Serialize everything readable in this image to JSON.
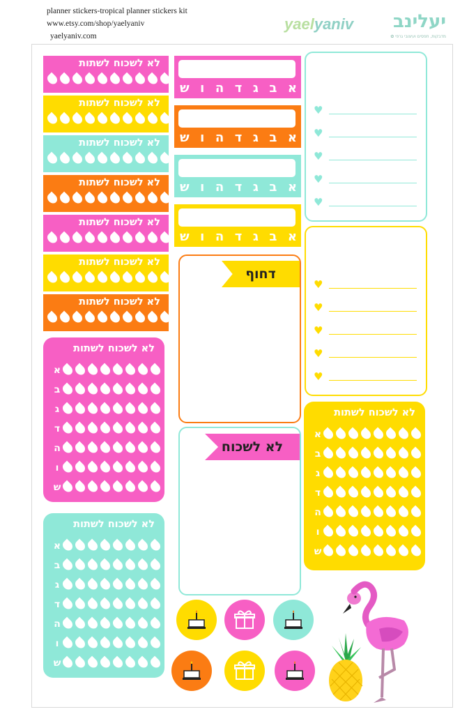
{
  "header": {
    "line1": "planner stickers-tropical planner stickers kit",
    "line2": "www.etsy.com/shop/yaelyaniv",
    "line3": "yaelyaniv.com"
  },
  "brand": {
    "name_en_a": "yael",
    "name_en_b": "yaniv",
    "name_he": "יעלינב",
    "tagline": "מדבקות, תפסים ועיצובי גרפי  ✿"
  },
  "labels": {
    "drink_reminder": "לא לשכוח לשתות",
    "urgent": "דחוף",
    "dont_forget": "לא לשכוח"
  },
  "weekdays": [
    "א",
    "ב",
    "ג",
    "ד",
    "ה",
    "ו",
    "ש"
  ],
  "colors": {
    "pink": "#f75fc4",
    "yellow": "#ffdc00",
    "mint": "#8fe8d8",
    "orange": "#fb7c13"
  },
  "icons": [
    "cake-icon",
    "gift-icon",
    "flamingo-icon",
    "pineapple-icon",
    "heart-icon",
    "drop-icon"
  ]
}
